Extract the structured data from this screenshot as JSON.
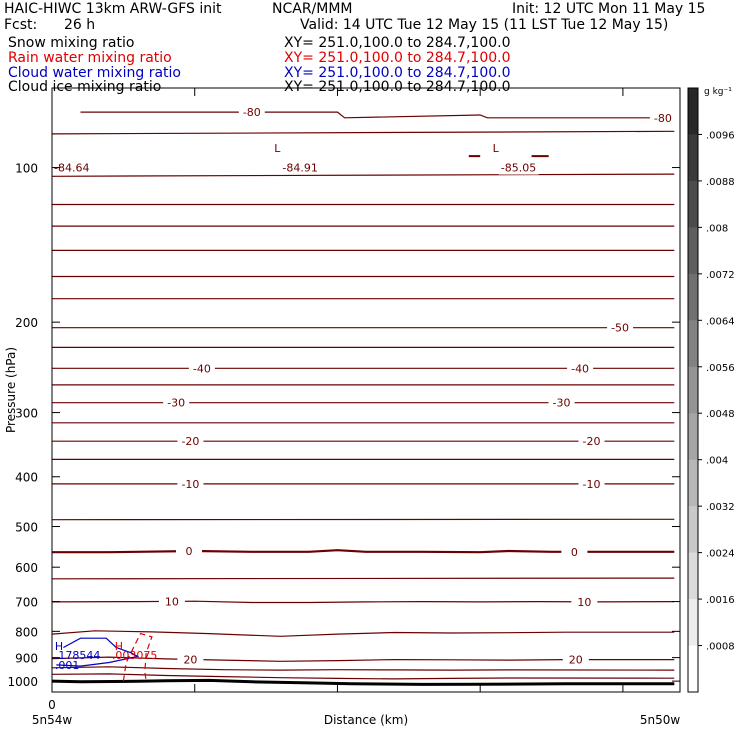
{
  "header": {
    "model": "HAIC-HIWC 13km ARW-GFS init",
    "org": "NCAR/MMM",
    "init": "Init: 12 UTC Mon 11 May 15",
    "fcst_label": "Fcst:",
    "fcst_value": "26 h",
    "valid": "Valid: 14 UTC Tue 12 May 15 (11 LST Tue 12 May 15)",
    "fields": [
      {
        "name": "Snow mixing ratio",
        "xy": "XY= 251.0,100.0 to 284.7,100.0",
        "color": "#000000"
      },
      {
        "name": "Rain water mixing ratio",
        "xy": "XY= 251.0,100.0 to 284.7,100.0",
        "color": "#e00000"
      },
      {
        "name": "Cloud water mixing ratio",
        "xy": "XY= 251.0,100.0 to 284.7,100.0",
        "color": "#0000c0"
      },
      {
        "name": "Cloud ice mixing ratio",
        "xy": "XY= 251.0,100.0 to 284.7,100.0",
        "color": "#000000"
      }
    ]
  },
  "colors": {
    "temperature_contour": "#6b0000",
    "rain_contour": "#e00000",
    "cloud_water_contour": "#0000c0",
    "terrain": "#000000"
  },
  "chart_data": {
    "type": "line",
    "xlabel": "Distance (km)",
    "ylabel": "Pressure (hPa)",
    "y_scale": "log",
    "y_reversed": true,
    "ylim": [
      1050,
      70
    ],
    "xlim": [
      0,
      440
    ],
    "yticks": [
      100,
      200,
      300,
      400,
      500,
      600,
      700,
      800,
      900,
      1000
    ],
    "x_tick_label": "0",
    "x_ticks": [
      0,
      100,
      200,
      300,
      400
    ],
    "x_endpoint_labels": [
      "5n54w",
      "5n50w"
    ],
    "temperature_contours": [
      {
        "level": -80,
        "label": "-80",
        "label_x": [
          140,
          428
        ],
        "points": [
          [
            20,
            78
          ],
          [
            200,
            78
          ],
          [
            205,
            80
          ],
          [
            300,
            79
          ],
          [
            305,
            80
          ],
          [
            436,
            80
          ]
        ]
      },
      {
        "level": -85,
        "label": "",
        "points": [
          [
            0,
            86
          ],
          [
            436,
            85
          ]
        ]
      },
      {
        "level": -85,
        "label": "",
        "points": [
          [
            0,
            104
          ],
          [
            436,
            103
          ]
        ]
      },
      {
        "level": -75,
        "label": "",
        "points": [
          [
            0,
            118
          ],
          [
            436,
            118
          ]
        ]
      },
      {
        "level": -70,
        "label": "",
        "points": [
          [
            0,
            130
          ],
          [
            436,
            130
          ]
        ]
      },
      {
        "level": -65,
        "label": "",
        "points": [
          [
            0,
            145
          ],
          [
            436,
            145
          ]
        ]
      },
      {
        "level": -60,
        "label": "",
        "points": [
          [
            0,
            163
          ],
          [
            436,
            163
          ]
        ]
      },
      {
        "level": -55,
        "label": "",
        "points": [
          [
            0,
            180
          ],
          [
            436,
            180
          ]
        ]
      },
      {
        "level": -50,
        "label": "-50",
        "label_x": [
          398
        ],
        "points": [
          [
            0,
            205
          ],
          [
            436,
            205
          ]
        ]
      },
      {
        "level": -45,
        "label": "",
        "points": [
          [
            0,
            224
          ],
          [
            436,
            224
          ]
        ]
      },
      {
        "level": -40,
        "label": "-40",
        "label_x": [
          105,
          370
        ],
        "points": [
          [
            0,
            246
          ],
          [
            436,
            246
          ]
        ]
      },
      {
        "level": -35,
        "label": "",
        "points": [
          [
            0,
            265
          ],
          [
            436,
            265
          ]
        ]
      },
      {
        "level": -30,
        "label": "-30",
        "label_x": [
          87,
          357
        ],
        "points": [
          [
            0,
            287
          ],
          [
            436,
            287
          ]
        ]
      },
      {
        "level": -25,
        "label": "",
        "points": [
          [
            0,
            314
          ],
          [
            436,
            314
          ]
        ]
      },
      {
        "level": -20,
        "label": "-20",
        "label_x": [
          97,
          378
        ],
        "points": [
          [
            0,
            341
          ],
          [
            436,
            341
          ]
        ]
      },
      {
        "level": -15,
        "label": "",
        "points": [
          [
            0,
            370
          ],
          [
            436,
            370
          ]
        ]
      },
      {
        "level": -10,
        "label": "-10",
        "label_x": [
          97,
          378
        ],
        "points": [
          [
            0,
            413
          ],
          [
            436,
            413
          ]
        ]
      },
      {
        "level": -5,
        "label": "",
        "points": [
          [
            0,
            485
          ],
          [
            436,
            484
          ]
        ]
      },
      {
        "level": 0,
        "label": "0",
        "label_x": [
          96,
          366
        ],
        "points": [
          [
            0,
            561
          ],
          [
            40,
            561
          ],
          [
            60,
            560
          ],
          [
            100,
            558
          ],
          [
            140,
            560
          ],
          [
            180,
            560
          ],
          [
            200,
            556
          ],
          [
            220,
            560
          ],
          [
            260,
            560
          ],
          [
            300,
            561
          ],
          [
            320,
            558
          ],
          [
            350,
            560
          ],
          [
            436,
            560
          ]
        ]
      },
      {
        "level": 5,
        "label": "",
        "points": [
          [
            0,
            632
          ],
          [
            436,
            630
          ]
        ]
      },
      {
        "level": 10,
        "label": "10",
        "label_x": [
          84,
          373
        ],
        "points": [
          [
            0,
            701
          ],
          [
            60,
            700
          ],
          [
            100,
            699
          ],
          [
            140,
            703
          ],
          [
            180,
            703
          ],
          [
            220,
            701
          ],
          [
            260,
            700
          ],
          [
            300,
            701
          ],
          [
            340,
            700
          ],
          [
            380,
            701
          ],
          [
            436,
            700
          ]
        ]
      },
      {
        "level": 15,
        "label": "",
        "points": [
          [
            0,
            810
          ],
          [
            30,
            798
          ],
          [
            70,
            802
          ],
          [
            110,
            808
          ],
          [
            160,
            818
          ],
          [
            200,
            810
          ],
          [
            240,
            804
          ],
          [
            280,
            806
          ],
          [
            320,
            805
          ],
          [
            360,
            803
          ],
          [
            400,
            803
          ],
          [
            436,
            803
          ]
        ]
      },
      {
        "level": 20,
        "label": "20",
        "label_x": [
          97,
          367
        ],
        "points": [
          [
            0,
            904
          ],
          [
            40,
            898
          ],
          [
            80,
            905
          ],
          [
            120,
            910
          ],
          [
            160,
            915
          ],
          [
            200,
            912
          ],
          [
            240,
            908
          ],
          [
            280,
            909
          ],
          [
            320,
            910
          ],
          [
            360,
            908
          ],
          [
            436,
            908
          ]
        ]
      },
      {
        "level": 25,
        "label": "",
        "points": [
          [
            0,
            942
          ],
          [
            40,
            938
          ],
          [
            80,
            945
          ],
          [
            120,
            950
          ],
          [
            160,
            952
          ],
          [
            200,
            950
          ],
          [
            240,
            951
          ],
          [
            280,
            952
          ],
          [
            320,
            951
          ],
          [
            436,
            952
          ]
        ]
      },
      {
        "level": 30,
        "label": "",
        "points": [
          [
            0,
            970
          ],
          [
            40,
            968
          ],
          [
            80,
            975
          ],
          [
            120,
            980
          ],
          [
            160,
            985
          ],
          [
            200,
            988
          ],
          [
            240,
            990
          ],
          [
            280,
            988
          ],
          [
            320,
            986
          ],
          [
            436,
            987
          ]
        ]
      }
    ],
    "extrema_labels": [
      {
        "type": "L",
        "value": "-84.91",
        "x": 160
      },
      {
        "type": "L",
        "value": "-85.05",
        "x": 313
      },
      {
        "type": "",
        "value": "-84.64",
        "x": 0
      }
    ],
    "terrain": {
      "points": [
        [
          0,
          1000
        ],
        [
          20,
          1003
        ],
        [
          60,
          1001
        ],
        [
          80,
          998
        ],
        [
          110,
          997
        ],
        [
          140,
          1003
        ],
        [
          180,
          1008
        ],
        [
          210,
          1012
        ],
        [
          260,
          1015
        ],
        [
          300,
          1014
        ],
        [
          360,
          1012
        ],
        [
          436,
          1012
        ]
      ]
    },
    "cloud_water_contour": {
      "level": ".001",
      "max_label": "H",
      "max_value": ".178544",
      "points": [
        [
          3,
          930
        ],
        [
          20,
          935
        ],
        [
          40,
          920
        ],
        [
          60,
          895
        ],
        [
          55,
          880
        ],
        [
          45,
          860
        ],
        [
          38,
          825
        ],
        [
          20,
          825
        ],
        [
          8,
          860
        ]
      ]
    },
    "rain_contour": {
      "max_label": "H",
      "max_value": ".003075",
      "points": [
        [
          50,
          1000
        ],
        [
          52,
          920
        ],
        [
          58,
          850
        ],
        [
          62,
          808
        ],
        [
          70,
          820
        ],
        [
          66,
          880
        ],
        [
          65,
          960
        ],
        [
          66,
          1000
        ]
      ]
    },
    "colorbar": {
      "unit": "g kg⁻¹",
      "ticks": [
        ".0096",
        ".0088",
        ".008",
        ".0072",
        ".0064",
        ".0056",
        ".0048",
        ".004",
        ".0032",
        ".0024",
        ".0016",
        ".0008"
      ]
    }
  }
}
